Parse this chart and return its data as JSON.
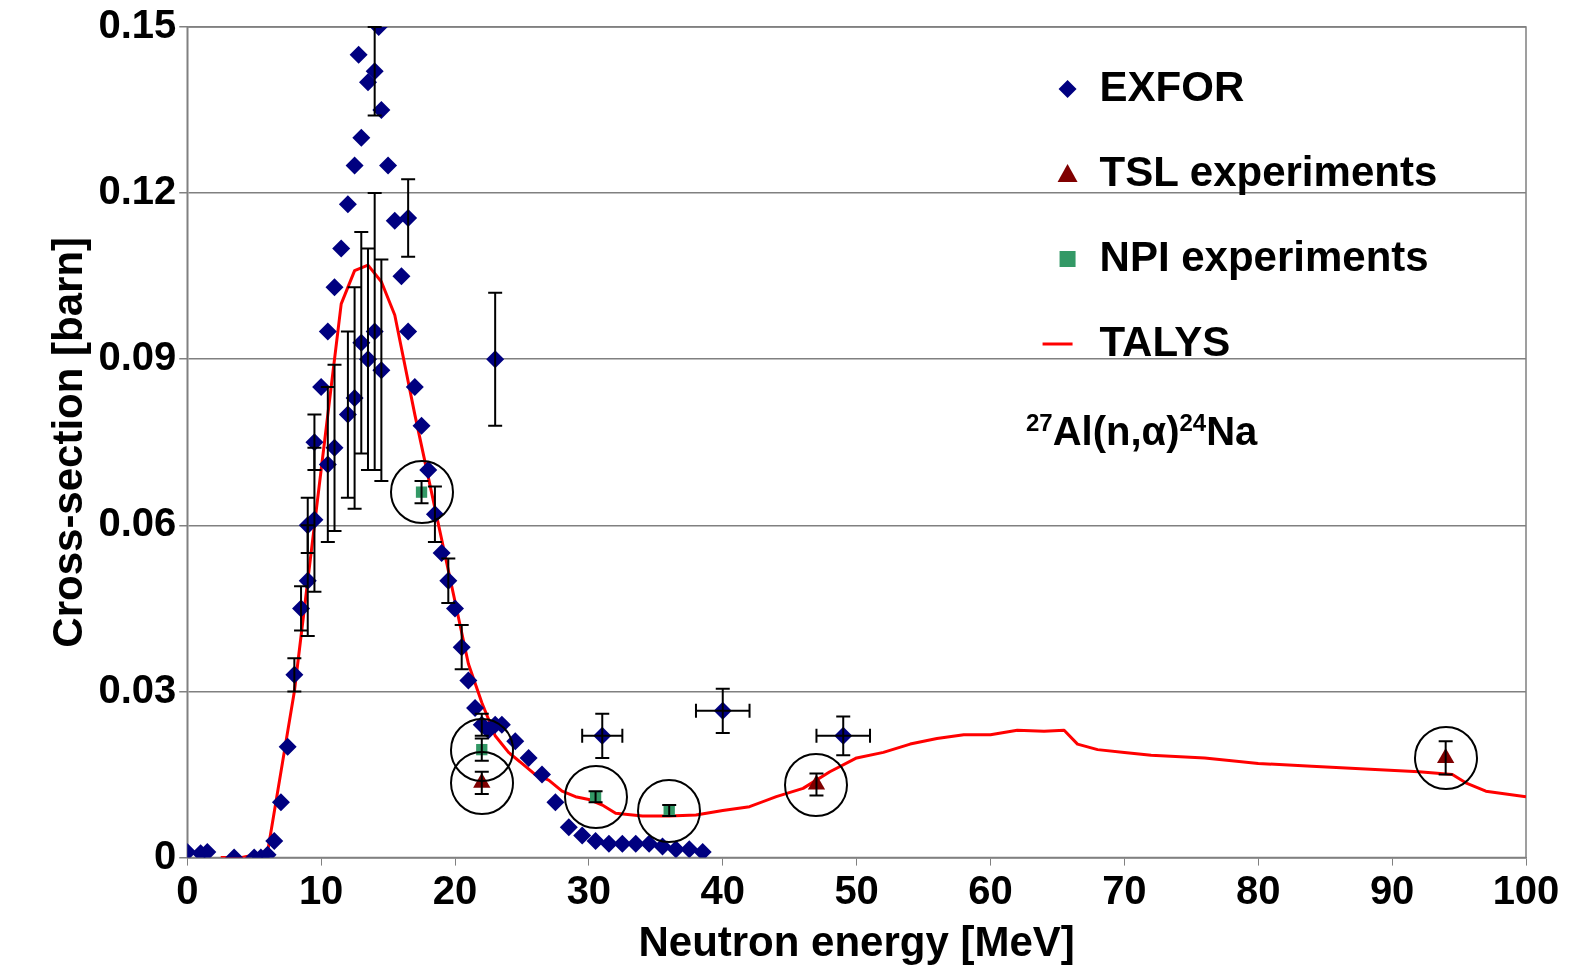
{
  "chart_data": {
    "type": "scatter",
    "xlabel": "Neutron energy [MeV]",
    "ylabel": "Cross-section [barn]",
    "annotations": [
      "$^{27}$Al(n,α)$^{24}$Na"
    ],
    "xlim": [
      0,
      100
    ],
    "xticks": [
      0,
      10,
      20,
      30,
      40,
      50,
      60,
      70,
      80,
      90,
      100
    ],
    "ylim": [
      0,
      0.15
    ],
    "yticks": [
      0,
      0.03,
      0.06,
      0.09,
      0.12,
      0.15
    ],
    "grid": "y",
    "legend": "top right",
    "series": [
      {
        "name": "EXFOR",
        "type": "scatter",
        "marker": "diamond",
        "color": "#000080",
        "x": [
          0,
          1,
          1.5,
          3.5,
          5,
          5.5,
          6,
          6.5,
          7,
          7.5,
          8,
          8.5,
          9,
          9,
          9.5,
          9.5,
          10,
          10.5,
          10.5,
          11,
          11,
          11.5,
          12,
          12,
          12.5,
          12.5,
          12.8,
          13,
          13,
          13.5,
          13.5,
          14,
          14,
          14.3,
          14.5,
          14.5,
          15,
          15.5,
          16,
          16.5,
          16.5,
          17,
          17.5,
          18,
          18.5,
          19,
          19.5,
          20,
          20.5,
          21,
          21.5,
          22,
          22.5,
          23,
          23,
          23.5,
          24.5,
          25.5,
          26.5,
          27.5,
          28.5,
          29.5,
          30.5,
          31,
          31.5,
          32.5,
          33.5,
          34.5,
          35.5,
          36.5,
          37.5,
          38.5,
          40,
          49
        ],
        "values": [
          0.001,
          0.0008,
          0.001,
          0,
          0,
          0,
          0.0005,
          0.003,
          0.01,
          0.02,
          0.033,
          0.045,
          0.06,
          0.05,
          0.075,
          0.061,
          0.085,
          0.095,
          0.071,
          0.103,
          0.074,
          0.11,
          0.118,
          0.08,
          0.125,
          0.083,
          0.145,
          0.13,
          0.093,
          0.14,
          0.09,
          0.142,
          0.095,
          0.15,
          0.135,
          0.088,
          0.125,
          0.115,
          0.105,
          0.095,
          0.1155,
          0.085,
          0.078,
          0.07,
          0.062,
          0.055,
          0.05,
          0.045,
          0.038,
          0.032,
          0.027,
          0.024,
          0.023,
          0.09,
          0.024,
          0.024,
          0.021,
          0.018,
          0.015,
          0.01,
          0.0055,
          0.004,
          0.003,
          0.022,
          0.0025,
          0.0025,
          0.0025,
          0.0025,
          0.002,
          0.0015,
          0.0015,
          0.001,
          0.0265,
          0.022
        ],
        "errors": [
          null,
          null,
          null,
          null,
          null,
          null,
          null,
          null,
          null,
          null,
          0.003,
          0.004,
          0.005,
          0.01,
          0.005,
          0.013,
          null,
          null,
          0.014,
          null,
          0.015,
          null,
          null,
          0.015,
          null,
          0.02,
          null,
          null,
          0.02,
          null,
          0.02,
          0.008,
          0.025,
          null,
          null,
          0.02,
          null,
          null,
          null,
          null,
          0.007,
          null,
          null,
          null,
          0.005,
          null,
          0.004,
          null,
          0.004,
          null,
          null,
          0.002,
          null,
          0.012,
          null,
          null,
          null,
          null,
          null,
          null,
          null,
          null,
          null,
          0.004,
          null,
          null,
          null,
          null,
          null,
          null,
          null,
          null,
          0.004,
          0.0035
        ],
        "xerrors": [
          null,
          null,
          null,
          null,
          null,
          null,
          null,
          null,
          null,
          null,
          null,
          null,
          null,
          null,
          null,
          null,
          null,
          null,
          null,
          null,
          null,
          null,
          null,
          null,
          null,
          null,
          null,
          null,
          null,
          null,
          null,
          null,
          null,
          null,
          null,
          null,
          null,
          null,
          null,
          null,
          null,
          null,
          null,
          null,
          null,
          null,
          null,
          null,
          null,
          null,
          null,
          null,
          null,
          null,
          null,
          null,
          null,
          null,
          null,
          null,
          null,
          null,
          null,
          1.5,
          null,
          null,
          null,
          null,
          null,
          null,
          null,
          null,
          2,
          2
        ]
      },
      {
        "name": "TSL experiments",
        "type": "scatter",
        "marker": "triangle",
        "color": "#800000",
        "x": [
          22,
          47,
          94
        ],
        "values": [
          0.0135,
          0.0132,
          0.018
        ],
        "errors": [
          0.002,
          0.002,
          0.003
        ]
      },
      {
        "name": "NPI experiments",
        "type": "scatter",
        "marker": "square",
        "color": "#339966",
        "x": [
          17.5,
          22,
          30.5,
          36
        ],
        "values": [
          0.066,
          0.0195,
          0.011,
          0.0085
        ],
        "errors": [
          0.002,
          0.002,
          0.001,
          0.001
        ]
      },
      {
        "name": "TALYS",
        "type": "line",
        "marker": "none",
        "color": "#ff0000",
        "x": [
          2.5,
          4,
          6,
          8,
          10,
          11.5,
          12.5,
          13.5,
          14.5,
          15.5,
          17,
          21,
          22,
          23,
          24,
          25,
          26,
          27,
          28,
          29,
          30,
          31,
          32,
          34,
          36,
          38,
          40,
          42,
          44,
          46,
          48,
          50,
          52,
          54,
          56,
          58,
          60,
          62,
          64,
          65.5,
          66.5,
          68,
          70,
          72,
          76,
          80,
          84,
          88,
          92,
          94.5,
          95.5,
          97,
          100
        ],
        "values": [
          0,
          0,
          0.001,
          0.03,
          0.07,
          0.1,
          0.106,
          0.107,
          0.104,
          0.098,
          0.08,
          0.035,
          0.028,
          0.022,
          0.019,
          0.017,
          0.015,
          0.014,
          0.012,
          0.011,
          0.0105,
          0.0095,
          0.008,
          0.0075,
          0.0075,
          0.0077,
          0.0085,
          0.0092,
          0.011,
          0.0125,
          0.0155,
          0.018,
          0.019,
          0.0205,
          0.0215,
          0.0222,
          0.0222,
          0.023,
          0.0228,
          0.023,
          0.0205,
          0.0195,
          0.019,
          0.0185,
          0.018,
          0.017,
          0.0165,
          0.016,
          0.0155,
          0.015,
          0.0135,
          0.012,
          0.011
        ]
      }
    ]
  }
}
